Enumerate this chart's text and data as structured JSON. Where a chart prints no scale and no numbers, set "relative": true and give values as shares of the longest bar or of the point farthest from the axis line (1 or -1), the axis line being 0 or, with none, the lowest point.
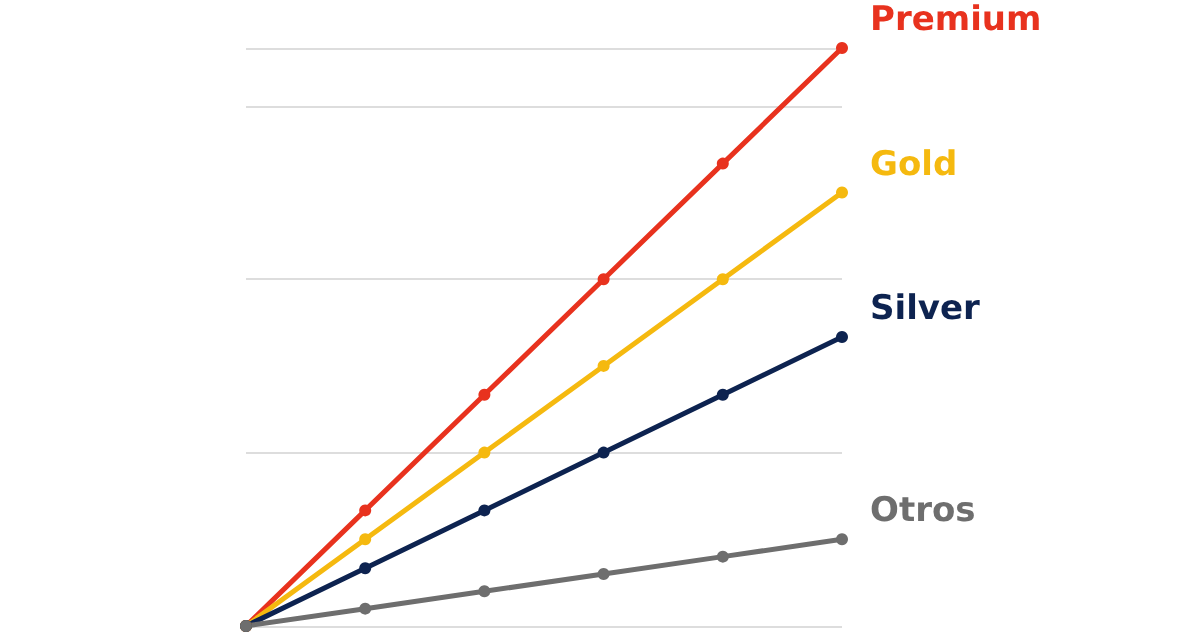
{
  "chart_data": {
    "type": "line",
    "relative": true,
    "categories": [
      null,
      null,
      null,
      null,
      null,
      null
    ],
    "series": [
      {
        "name": "Premium",
        "color": "#e8321e",
        "values": [
          0,
          0.2,
          0.4,
          0.6,
          0.8,
          1
        ]
      },
      {
        "name": "Gold",
        "color": "#f5b90f",
        "values": [
          0,
          0.15,
          0.3,
          0.45,
          0.6,
          0.75
        ]
      },
      {
        "name": "Silver",
        "color": "#0d2350",
        "values": [
          0,
          0.1,
          0.2,
          0.3,
          0.4,
          0.5
        ]
      },
      {
        "name": "Otros",
        "color": "#6e6e6e",
        "values": [
          0,
          0.03,
          0.06,
          0.09,
          0.12,
          0.15
        ]
      }
    ],
    "grid": "y",
    "marker": "circle",
    "line_style": "solid"
  }
}
